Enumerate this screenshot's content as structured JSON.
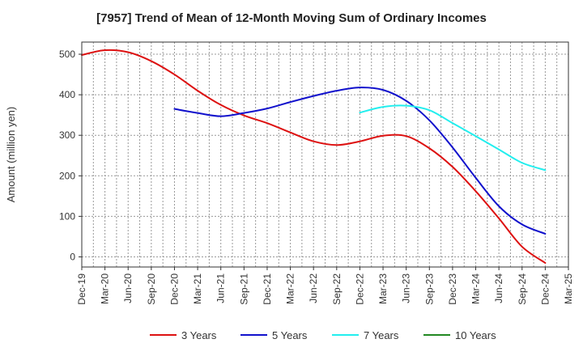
{
  "chart_data": {
    "type": "line",
    "title": "[7957]  Trend of Mean of 12-Month Moving Sum of Ordinary Incomes",
    "xlabel": "",
    "ylabel": "Amount (million yen)",
    "ylim": [
      -25,
      530
    ],
    "yticks": [
      0,
      100,
      200,
      300,
      400,
      500
    ],
    "categories": [
      "Dec-19",
      "Mar-20",
      "Jun-20",
      "Sep-20",
      "Dec-20",
      "Mar-21",
      "Jun-21",
      "Sep-21",
      "Dec-21",
      "Mar-22",
      "Jun-22",
      "Sep-22",
      "Dec-22",
      "Mar-23",
      "Jun-23",
      "Sep-23",
      "Dec-23",
      "Mar-24",
      "Jun-24",
      "Sep-24",
      "Dec-24",
      "Mar-25"
    ],
    "grid": true,
    "legend_position": "bottom",
    "series": [
      {
        "name": "3 Years",
        "color": "#dd1111",
        "values": [
          498,
          510,
          505,
          483,
          450,
          410,
          375,
          349,
          330,
          307,
          285,
          276,
          285,
          299,
          298,
          268,
          222,
          162,
          95,
          25,
          -15,
          null
        ]
      },
      {
        "name": "5 Years",
        "color": "#1111cc",
        "values": [
          null,
          null,
          null,
          null,
          365,
          355,
          347,
          355,
          366,
          382,
          397,
          410,
          418,
          412,
          385,
          337,
          270,
          195,
          125,
          80,
          57,
          null
        ]
      },
      {
        "name": "7 Years",
        "color": "#22eeee",
        "values": [
          null,
          null,
          null,
          null,
          null,
          null,
          null,
          null,
          null,
          null,
          null,
          null,
          356,
          370,
          373,
          362,
          330,
          298,
          265,
          232,
          214,
          null
        ]
      },
      {
        "name": "10 Years",
        "color": "#228822",
        "values": [
          null,
          null,
          null,
          null,
          null,
          null,
          null,
          null,
          null,
          null,
          null,
          null,
          null,
          null,
          null,
          null,
          null,
          null,
          null,
          null,
          null,
          null
        ]
      }
    ]
  }
}
